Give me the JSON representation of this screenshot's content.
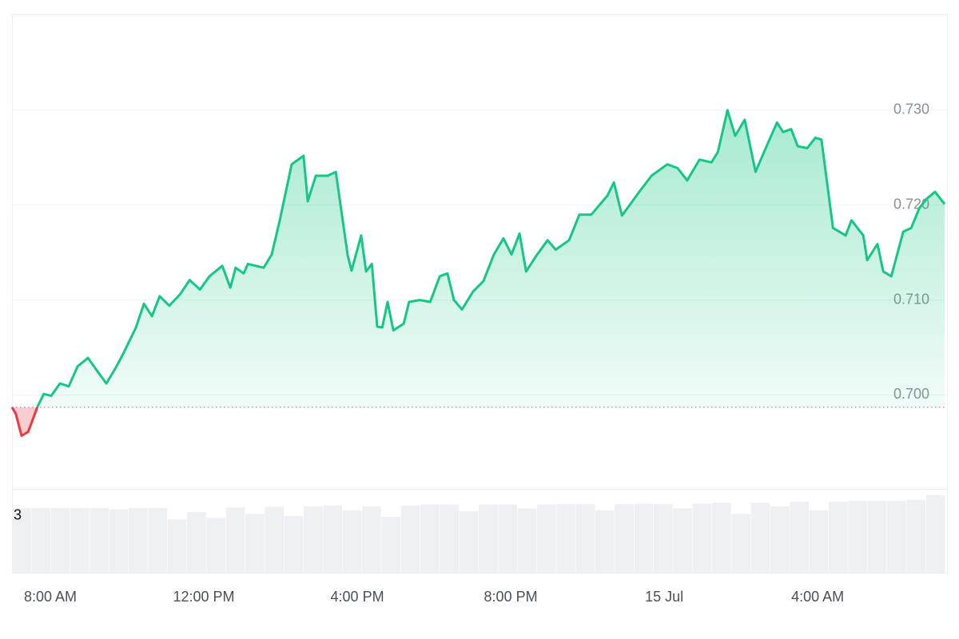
{
  "chart_data": {
    "type": "line",
    "x": [
      7,
      7.1,
      7.25,
      7.42,
      7.67,
      7.83,
      8.02,
      8.25,
      8.48,
      8.71,
      8.98,
      9.19,
      9.46,
      9.71,
      9.92,
      10.23,
      10.44,
      10.65,
      10.85,
      11.1,
      11.38,
      11.63,
      11.9,
      12.15,
      12.48,
      12.69,
      12.83,
      13.04,
      13.15,
      13.56,
      13.77,
      13.98,
      14.29,
      14.6,
      14.71,
      14.92,
      15.23,
      15.44,
      15.75,
      15.85,
      16.1,
      16.23,
      16.38,
      16.52,
      16.65,
      16.79,
      16.94,
      17.21,
      17.35,
      17.63,
      17.9,
      18.15,
      18.35,
      18.52,
      18.73,
      19.02,
      19.29,
      19.56,
      19.81,
      20.02,
      20.23,
      20.4,
      20.69,
      20.96,
      21.17,
      21.52,
      21.79,
      22.1,
      22.52,
      22.69,
      22.9,
      23.35,
      23.67,
      24.08,
      24.35,
      24.6,
      24.92,
      25.23,
      25.4,
      25.65,
      25.85,
      26.1,
      26.38,
      26.69,
      26.94,
      27.1,
      27.31,
      27.48,
      27.73,
      27.94,
      28.1,
      28.4,
      28.73,
      28.88,
      29.19,
      29.29,
      29.56,
      29.71,
      29.92,
      30.23,
      30.44,
      30.65,
      30.85,
      31.06,
      31.31
    ],
    "series": [
      {
        "color": "#16c784",
        "below_color": "#ea3943",
        "values": [
          0.6987,
          0.698,
          0.6957,
          0.6961,
          0.6988,
          0.7001,
          0.6999,
          0.7012,
          0.7009,
          0.703,
          0.7039,
          0.7027,
          0.7012,
          0.7029,
          0.7045,
          0.7071,
          0.7096,
          0.7083,
          0.7104,
          0.7094,
          0.7106,
          0.7121,
          0.7111,
          0.7125,
          0.7136,
          0.7113,
          0.7134,
          0.7128,
          0.7138,
          0.7134,
          0.7148,
          0.7184,
          0.7243,
          0.7252,
          0.7204,
          0.7231,
          0.7231,
          0.7235,
          0.7147,
          0.7131,
          0.7168,
          0.713,
          0.7138,
          0.7072,
          0.7071,
          0.7098,
          0.7068,
          0.7075,
          0.7098,
          0.71,
          0.7098,
          0.7125,
          0.7128,
          0.71,
          0.709,
          0.7109,
          0.712,
          0.7148,
          0.7165,
          0.7148,
          0.717,
          0.713,
          0.7148,
          0.7163,
          0.7153,
          0.7163,
          0.719,
          0.719,
          0.721,
          0.7224,
          0.7189,
          0.7214,
          0.7231,
          0.7243,
          0.7239,
          0.7226,
          0.7248,
          0.7245,
          0.7256,
          0.73,
          0.7273,
          0.729,
          0.7235,
          0.7264,
          0.7287,
          0.7277,
          0.728,
          0.7262,
          0.726,
          0.7271,
          0.7269,
          0.7176,
          0.7168,
          0.7184,
          0.7168,
          0.7142,
          0.7159,
          0.713,
          0.7125,
          0.7172,
          0.7176,
          0.7197,
          0.7207,
          0.7214,
          0.7201
        ]
      }
    ],
    "reference_value": 0.6987,
    "xlim": [
      7,
      31.33
    ],
    "xticks": [
      {
        "value": 8,
        "label": "8:00 AM"
      },
      {
        "value": 12,
        "label": "12:00 PM"
      },
      {
        "value": 16,
        "label": "4:00 PM"
      },
      {
        "value": 20,
        "label": "8:00 PM"
      },
      {
        "value": 24,
        "label": "15 Jul"
      },
      {
        "value": 28,
        "label": "4:00 AM"
      }
    ],
    "ylim": [
      0.6901,
      0.7401
    ],
    "yticks": [
      {
        "value": 0.7,
        "label": "0.700"
      },
      {
        "value": 0.71,
        "label": "0.710"
      },
      {
        "value": 0.72,
        "label": "0.720"
      },
      {
        "value": 0.73,
        "label": "0.730"
      }
    ],
    "grid": true,
    "volume": {
      "color": "#eef0f4",
      "values": [
        3.42,
        3.42,
        3.42,
        3.42,
        3.42,
        3.35,
        3.42,
        3.42,
        2.83,
        3.2,
        2.9,
        3.45,
        3.1,
        3.48,
        3.0,
        3.5,
        3.55,
        3.3,
        3.5,
        2.95,
        3.55,
        3.6,
        3.6,
        3.25,
        3.6,
        3.6,
        3.4,
        3.6,
        3.62,
        3.62,
        3.3,
        3.62,
        3.65,
        3.62,
        3.4,
        3.65,
        3.7,
        3.1,
        3.7,
        3.5,
        3.75,
        3.3,
        3.75,
        3.8,
        3.8,
        3.8,
        3.85,
        4.1
      ],
      "ylim": [
        0,
        4.43
      ],
      "yticks": [
        3
      ]
    }
  }
}
